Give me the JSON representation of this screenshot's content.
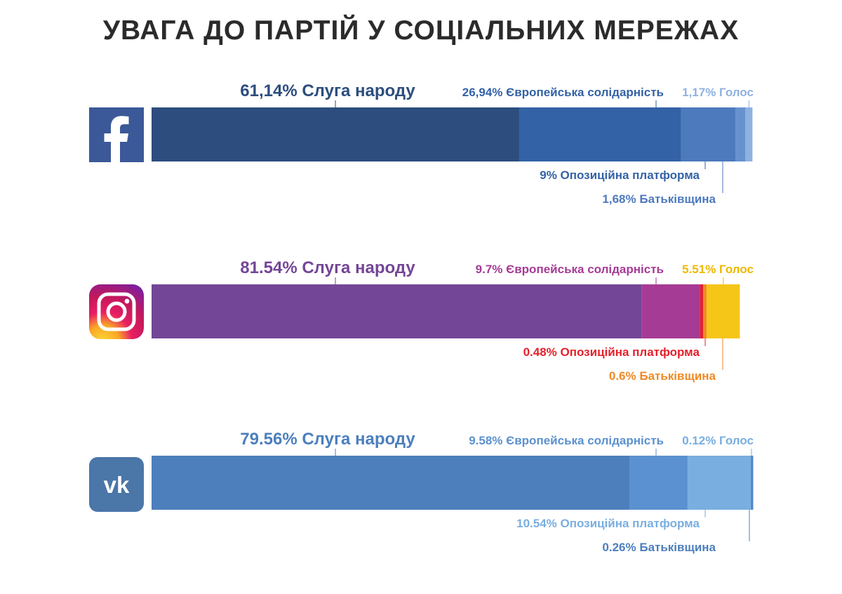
{
  "title": "УВАГА ДО ПАРТІЙ У СОЦІАЛЬНИХ МЕРЕЖАХ",
  "chart_data": [
    {
      "type": "bar",
      "platform": "facebook-icon",
      "orientation": "horizontal-stacked",
      "total": 100,
      "series": [
        {
          "label": "61,14% Слуга народу",
          "value": 61.14,
          "color": "#2c4d7e",
          "label_pos": "top",
          "label_color": "#2c4d7e",
          "size": "big"
        },
        {
          "label": "26,94% Європейська солідарність",
          "value": 26.94,
          "color": "#3362a6",
          "label_pos": "top",
          "label_color": "#3362a6",
          "size": "small"
        },
        {
          "label": "9% Опозиційна платформа",
          "value": 9.0,
          "color": "#4d79bd",
          "label_pos": "bottom",
          "label_color": "#3362a6",
          "size": "small"
        },
        {
          "label": "1,68% Батьківщина",
          "value": 1.68,
          "color": "#6792cf",
          "label_pos": "bottom",
          "label_color": "#4d79bd",
          "size": "small"
        },
        {
          "label": "1,17% Голос",
          "value": 1.17,
          "color": "#8fb1e0",
          "label_pos": "top",
          "label_color": "#8fb1e0",
          "size": "small"
        }
      ]
    },
    {
      "type": "bar",
      "platform": "instagram-icon",
      "orientation": "horizontal-stacked",
      "total": 100,
      "series": [
        {
          "label": "81.54% Слуга народу",
          "value": 81.54,
          "color": "#744697",
          "label_pos": "top",
          "label_color": "#744697",
          "size": "big"
        },
        {
          "label": "9.7% Європейська солідарність",
          "value": 9.7,
          "color": "#a63b95",
          "label_pos": "top",
          "label_color": "#a63b95",
          "size": "small"
        },
        {
          "label": "0.48% Опозиційна платформа",
          "value": 0.48,
          "color": "#e5202a",
          "label_pos": "bottom",
          "label_color": "#e5202a",
          "size": "small"
        },
        {
          "label": "0.6% Батьківщина",
          "value": 0.6,
          "color": "#f08a24",
          "label_pos": "bottom",
          "label_color": "#f08a24",
          "size": "small"
        },
        {
          "label": "5.51% Голос",
          "value": 5.51,
          "color": "#f5c518",
          "label_pos": "top",
          "label_color": "#f0b800",
          "size": "small"
        }
      ]
    },
    {
      "type": "bar",
      "platform": "vk-icon",
      "orientation": "horizontal-stacked",
      "total": 100,
      "series": [
        {
          "label": "79.56% Слуга народу",
          "value": 79.56,
          "color": "#4c7fbc",
          "label_pos": "top",
          "label_color": "#4c7fbc",
          "size": "big"
        },
        {
          "label": "9.58% Європейська солідарність",
          "value": 9.58,
          "color": "#5b91d0",
          "label_pos": "top",
          "label_color": "#5b91d0",
          "size": "small"
        },
        {
          "label": "10.54% Опозиційна платформа",
          "value": 10.54,
          "color": "#79aee0",
          "label_pos": "bottom",
          "label_color": "#79aee0",
          "size": "small"
        },
        {
          "label": "0.26% Батьківщина",
          "value": 0.26,
          "color": "#4c7fbc",
          "label_pos": "bottom",
          "label_color": "#4c7fbc",
          "size": "small"
        },
        {
          "label": "0.12% Голос",
          "value": 0.12,
          "color": "#5b91d0",
          "label_pos": "top",
          "label_color": "#79aee0",
          "size": "small"
        }
      ]
    }
  ]
}
